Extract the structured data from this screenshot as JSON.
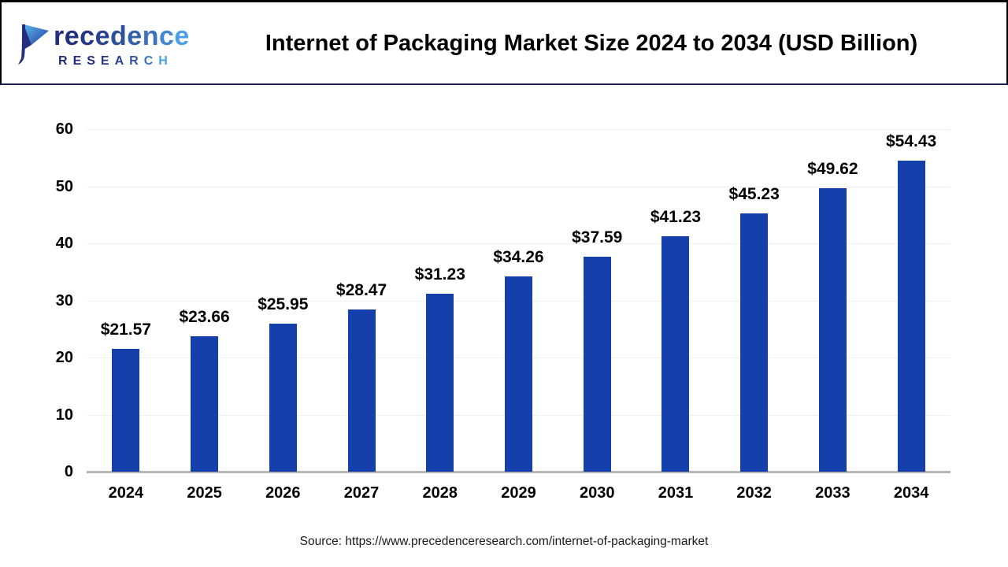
{
  "header": {
    "logo": {
      "name": "Precedence",
      "subtitle": "RESEARCH",
      "color_start": "#232e7d",
      "color_end": "#4aa0e8"
    }
  },
  "chart_data": {
    "type": "bar",
    "title": "Internet of Packaging Market Size 2024 to 2034 (USD Billion)",
    "categories": [
      "2024",
      "2025",
      "2026",
      "2027",
      "2028",
      "2029",
      "2030",
      "2031",
      "2032",
      "2033",
      "2034"
    ],
    "values": [
      21.57,
      23.66,
      25.95,
      28.47,
      31.23,
      34.26,
      37.59,
      41.23,
      45.23,
      49.62,
      54.43
    ],
    "value_labels": [
      "$21.57",
      "$23.66",
      "$25.95",
      "$28.47",
      "$31.23",
      "$34.26",
      "$37.59",
      "$41.23",
      "$45.23",
      "$49.62",
      "$54.43"
    ],
    "xlabel": "",
    "ylabel": "",
    "ylim": [
      0,
      60
    ],
    "yticks": [
      0,
      10,
      20,
      30,
      40,
      50,
      60
    ],
    "grid": true,
    "legend": "none",
    "bar_color": "#1540ab",
    "gridline_color": "#f1f1f1",
    "baseline_color": "#b6b6b6"
  },
  "footer": {
    "source": "Source: https://www.precedenceresearch.com/internet-of-packaging-market"
  }
}
